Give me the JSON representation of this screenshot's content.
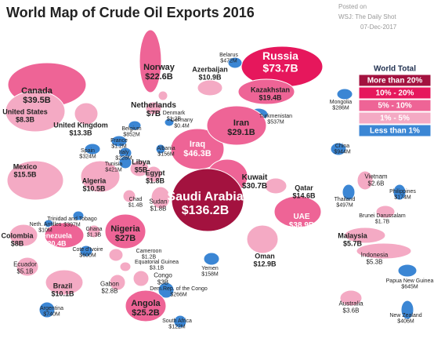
{
  "title": "World Map of Crude Oil Exports 2016",
  "source": {
    "posted": "Posted on",
    "publisher": "WSJ: The Daily Shot",
    "date": "07-Dec-2017"
  },
  "legend": {
    "title": "World Total",
    "items": [
      {
        "label": "More than 20%",
        "color": "#a3123f"
      },
      {
        "label": "10% - 20%",
        "color": "#e6175c"
      },
      {
        "label": "5% - 10%",
        "color": "#ee6496"
      },
      {
        "label": "1% - 5%",
        "color": "#f4aac4"
      },
      {
        "label": "Less than 1%",
        "color": "#3b86d4"
      }
    ]
  },
  "countries": [
    {
      "name": "Russia",
      "value": "$73.7B",
      "color": "#e6175c"
    },
    {
      "name": "Belarus",
      "value": "$472M",
      "color": "#3b86d4"
    },
    {
      "name": "Norway",
      "value": "$22.6B",
      "color": "#ee6496"
    },
    {
      "name": "Denmark",
      "value": "$1.2B",
      "color": "#f4aac4"
    },
    {
      "name": "Netherlands",
      "value": "$7B",
      "color": "#f4aac4"
    },
    {
      "name": "Germany",
      "value": "$0.4M",
      "color": "#3b86d4"
    },
    {
      "name": "Azerbaijan",
      "value": "$10.9B",
      "color": "#f4aac4"
    },
    {
      "name": "Kazakhstan",
      "value": "$19.4B",
      "color": "#ee6496"
    },
    {
      "name": "Turkmenistan",
      "value": "$537M",
      "color": "#3b86d4"
    },
    {
      "name": "Mongolia",
      "value": "$286M",
      "color": "#3b86d4"
    },
    {
      "name": "Canada",
      "value": "$39.5B",
      "color": "#ee6496"
    },
    {
      "name": "United States",
      "value": "$8.3B",
      "color": "#f4aac4"
    },
    {
      "name": "United Kingdom",
      "value": "$13.3B",
      "color": "#f4aac4"
    },
    {
      "name": "Belgium",
      "value": "$852M",
      "color": "#3b86d4"
    },
    {
      "name": "France",
      "value": "$1.2M",
      "color": "#3b86d4"
    },
    {
      "name": "Albania",
      "value": "$156M",
      "color": "#3b86d4"
    },
    {
      "name": "Spain",
      "value": "$324M",
      "color": "#3b86d4"
    },
    {
      "name": "Italy",
      "value": "$228M",
      "color": "#3b86d4"
    },
    {
      "name": "Tunisia",
      "value": "$421M",
      "color": "#3b86d4"
    },
    {
      "name": "Libya",
      "value": "$5B",
      "color": "#f4aac4"
    },
    {
      "name": "Egypt",
      "value": "$1.8B",
      "color": "#f4aac4"
    },
    {
      "name": "Iraq",
      "value": "$46.3B",
      "color": "#ee6496"
    },
    {
      "name": "Iran",
      "value": "$29.1B",
      "color": "#ee6496"
    },
    {
      "name": "Kuwait",
      "value": "$30.7B",
      "color": "#ee6496"
    },
    {
      "name": "Qatar",
      "value": "$14.6B",
      "color": "#f4aac4"
    },
    {
      "name": "UAE",
      "value": "$38.9B",
      "color": "#ee6496"
    },
    {
      "name": "Saudi Arabia",
      "value": "$136.2B",
      "color": "#a3123f"
    },
    {
      "name": "Oman",
      "value": "$12.9B",
      "color": "#f4aac4"
    },
    {
      "name": "Yemen",
      "value": "$158M",
      "color": "#3b86d4"
    },
    {
      "name": "China",
      "value": "$944M",
      "color": "#3b86d4"
    },
    {
      "name": "Vietnam",
      "value": "$2.6B",
      "color": "#f4aac4"
    },
    {
      "name": "Thailand",
      "value": "$497M",
      "color": "#3b86d4"
    },
    {
      "name": "Philippines",
      "value": "$174M",
      "color": "#3b86d4"
    },
    {
      "name": "Brunei Darussalam",
      "value": "$1.7B",
      "color": "#f4aac4"
    },
    {
      "name": "Malaysia",
      "value": "$5.7B",
      "color": "#f4aac4"
    },
    {
      "name": "Indonesia",
      "value": "$5.3B",
      "color": "#f4aac4"
    },
    {
      "name": "Papua New Guinea",
      "value": "$645M",
      "color": "#3b86d4"
    },
    {
      "name": "Australia",
      "value": "$3.6B",
      "color": "#f4aac4"
    },
    {
      "name": "New Zealand",
      "value": "$406M",
      "color": "#3b86d4"
    },
    {
      "name": "Mexico",
      "value": "$15.5B",
      "color": "#f4aac4"
    },
    {
      "name": "Algeria",
      "value": "$10.5B",
      "color": "#f4aac4"
    },
    {
      "name": "Chad",
      "value": "$1.4B",
      "color": "#f4aac4"
    },
    {
      "name": "Sudan",
      "value": "$1.8B",
      "color": "#f4aac4"
    },
    {
      "name": "Trinidad and Tobago",
      "value": "$397M",
      "color": "#3b86d4"
    },
    {
      "name": "Neth. Antilles",
      "value": "$10M",
      "color": "#3b86d4"
    },
    {
      "name": "Colombia",
      "value": "$8B",
      "color": "#f4aac4"
    },
    {
      "name": "Venezuela",
      "value": "$20.4B",
      "color": "#ee6496"
    },
    {
      "name": "Ghana",
      "value": "$1.3B",
      "color": "#f4aac4"
    },
    {
      "name": "Cote d'Ivoire",
      "value": "$600M",
      "color": "#3b86d4"
    },
    {
      "name": "Nigeria",
      "value": "$27B",
      "color": "#ee6496"
    },
    {
      "name": "Cameroon",
      "value": "$1.2B",
      "color": "#f4aac4"
    },
    {
      "name": "Equatorial Guinea",
      "value": "$3.1B",
      "color": "#f4aac4"
    },
    {
      "name": "Gabon",
      "value": "$2.8B",
      "color": "#f4aac4"
    },
    {
      "name": "Congo",
      "value": "$3B",
      "color": "#f4aac4"
    },
    {
      "name": "Dem.Rep. of the Congo",
      "value": "$266M",
      "color": "#3b86d4"
    },
    {
      "name": "Angola",
      "value": "$25.2B",
      "color": "#ee6496"
    },
    {
      "name": "South Africa",
      "value": "$122M",
      "color": "#3b86d4"
    },
    {
      "name": "Ecuador",
      "value": "$5.1B",
      "color": "#f4aac4"
    },
    {
      "name": "Brazil",
      "value": "$10.1B",
      "color": "#f4aac4"
    },
    {
      "name": "Argentina",
      "value": "$740M",
      "color": "#3b86d4"
    }
  ]
}
